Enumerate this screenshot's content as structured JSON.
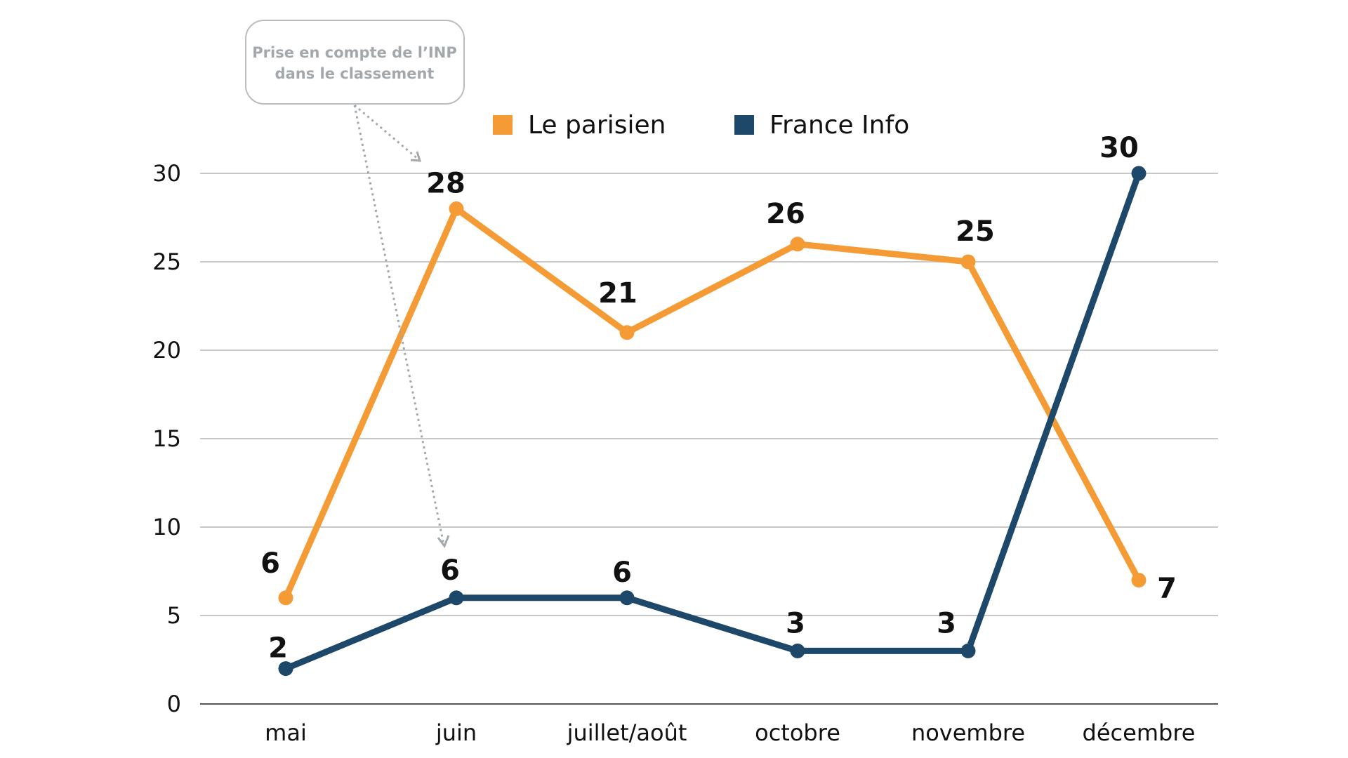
{
  "chart_data": {
    "type": "line",
    "categories": [
      "mai",
      "juin",
      "juillet/août",
      "octobre",
      "novembre",
      "décembre"
    ],
    "series": [
      {
        "name": "Le parisien",
        "color": "#f59b36",
        "values": [
          6,
          28,
          21,
          26,
          25,
          7
        ]
      },
      {
        "name": "France Info",
        "color": "#1d4869",
        "values": [
          2,
          6,
          6,
          3,
          3,
          30
        ]
      }
    ],
    "yticks": [
      0,
      5,
      10,
      15,
      20,
      25,
      30
    ],
    "ylim": [
      0,
      30
    ],
    "grid": true,
    "legend_position": "top-center",
    "annotation": {
      "lines": [
        "Prise en compte de l’INP",
        "dans le classement"
      ],
      "target_category": "juin"
    }
  }
}
